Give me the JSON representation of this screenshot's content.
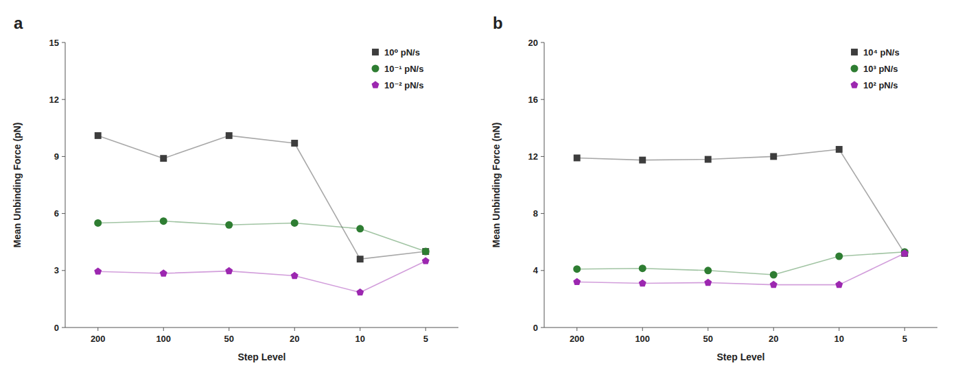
{
  "chart_data": [
    {
      "type": "line",
      "title": "a",
      "x_label": "Step Level",
      "y_label": "Mean Unbinding Force (pN)",
      "categories": [
        "200",
        "100",
        "50",
        "20",
        "10",
        "5"
      ],
      "ylim": [
        0,
        15
      ],
      "yticks": [
        0,
        3,
        6,
        9,
        12,
        15
      ],
      "grid": false,
      "legend": "upper right",
      "series": [
        {
          "name": "10⁰ pN/s",
          "color": "#3d3d3d",
          "marker": "square",
          "values": [
            10.1,
            8.9,
            10.1,
            9.7,
            3.6,
            4.0
          ]
        },
        {
          "name": "10⁻¹ pN/s",
          "color": "#2e7d32",
          "marker": "circle",
          "values": [
            5.5,
            5.6,
            5.4,
            5.5,
            5.2,
            4.0
          ]
        },
        {
          "name": "10⁻² pN/s",
          "color": "#9c27b0",
          "marker": "pentagon",
          "values": [
            2.95,
            2.85,
            2.97,
            2.72,
            1.85,
            3.5
          ]
        }
      ]
    },
    {
      "type": "line",
      "title": "b",
      "x_label": "Step Level",
      "y_label": "Mean Unbinding Force (nN)",
      "categories": [
        "200",
        "100",
        "50",
        "20",
        "10",
        "5"
      ],
      "ylim": [
        0,
        20
      ],
      "yticks": [
        0,
        4,
        8,
        12,
        16,
        20
      ],
      "grid": false,
      "legend": "upper right",
      "series": [
        {
          "name": "10⁴ pN/s",
          "color": "#3d3d3d",
          "marker": "square",
          "values": [
            11.9,
            11.75,
            11.8,
            12.0,
            12.5,
            5.2
          ]
        },
        {
          "name": "10³ pN/s",
          "color": "#2e7d32",
          "marker": "circle",
          "values": [
            4.1,
            4.15,
            4.0,
            3.7,
            5.0,
            5.3
          ]
        },
        {
          "name": "10² pN/s",
          "color": "#9c27b0",
          "marker": "pentagon",
          "values": [
            3.2,
            3.1,
            3.15,
            3.0,
            3.0,
            5.2
          ]
        }
      ]
    }
  ]
}
